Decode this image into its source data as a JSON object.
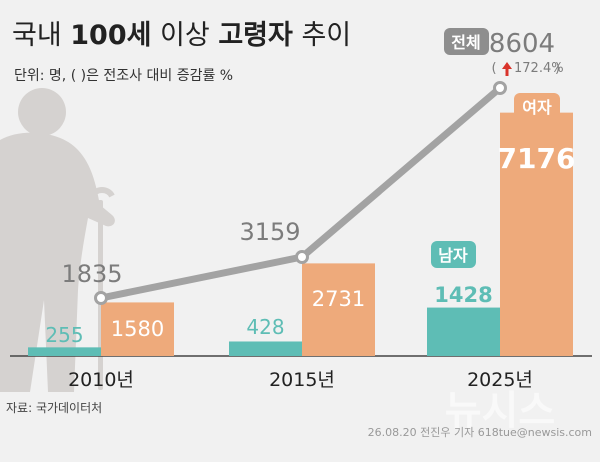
{
  "header": {
    "title_prefix": "국내 ",
    "title_bold": "100세",
    "title_middle": " 이상 ",
    "title_bold2": "고령자",
    "title_suffix": " 추이",
    "subtitle": "단위: 명, ( )은 전조사 대비 증감률 %"
  },
  "footer": {
    "source": "자료: 국가데이터처",
    "credit": "26.08.20 전진우 기자 618tue@newsis.com",
    "watermark": "뉴시스"
  },
  "colors": {
    "male": "#5ebdb5",
    "female": "#eeaa7b",
    "total_line": "#a3a3a3",
    "total_badge": "#8e8e8e",
    "text_gray": "#7c7c7c",
    "text_dark": "#222222",
    "arrow_red": "#d9342b"
  },
  "chart_data": {
    "type": "bar",
    "categories": [
      "2010년",
      "2015년",
      "2025년"
    ],
    "series": [
      {
        "name": "남자",
        "values": [
          255,
          428,
          1428
        ]
      },
      {
        "name": "여자",
        "values": [
          1580,
          2731,
          7176
        ]
      },
      {
        "name": "전체",
        "values": [
          1835,
          3159,
          8604
        ],
        "type": "line"
      }
    ],
    "value_labels": {
      "male": [
        "255",
        "428",
        "1428"
      ],
      "female": [
        "1580",
        "2731",
        "7176"
      ],
      "total": [
        "1835",
        "3159",
        "8604"
      ]
    },
    "change_label": "172.4%",
    "ylim": [
      0,
      9200
    ]
  }
}
